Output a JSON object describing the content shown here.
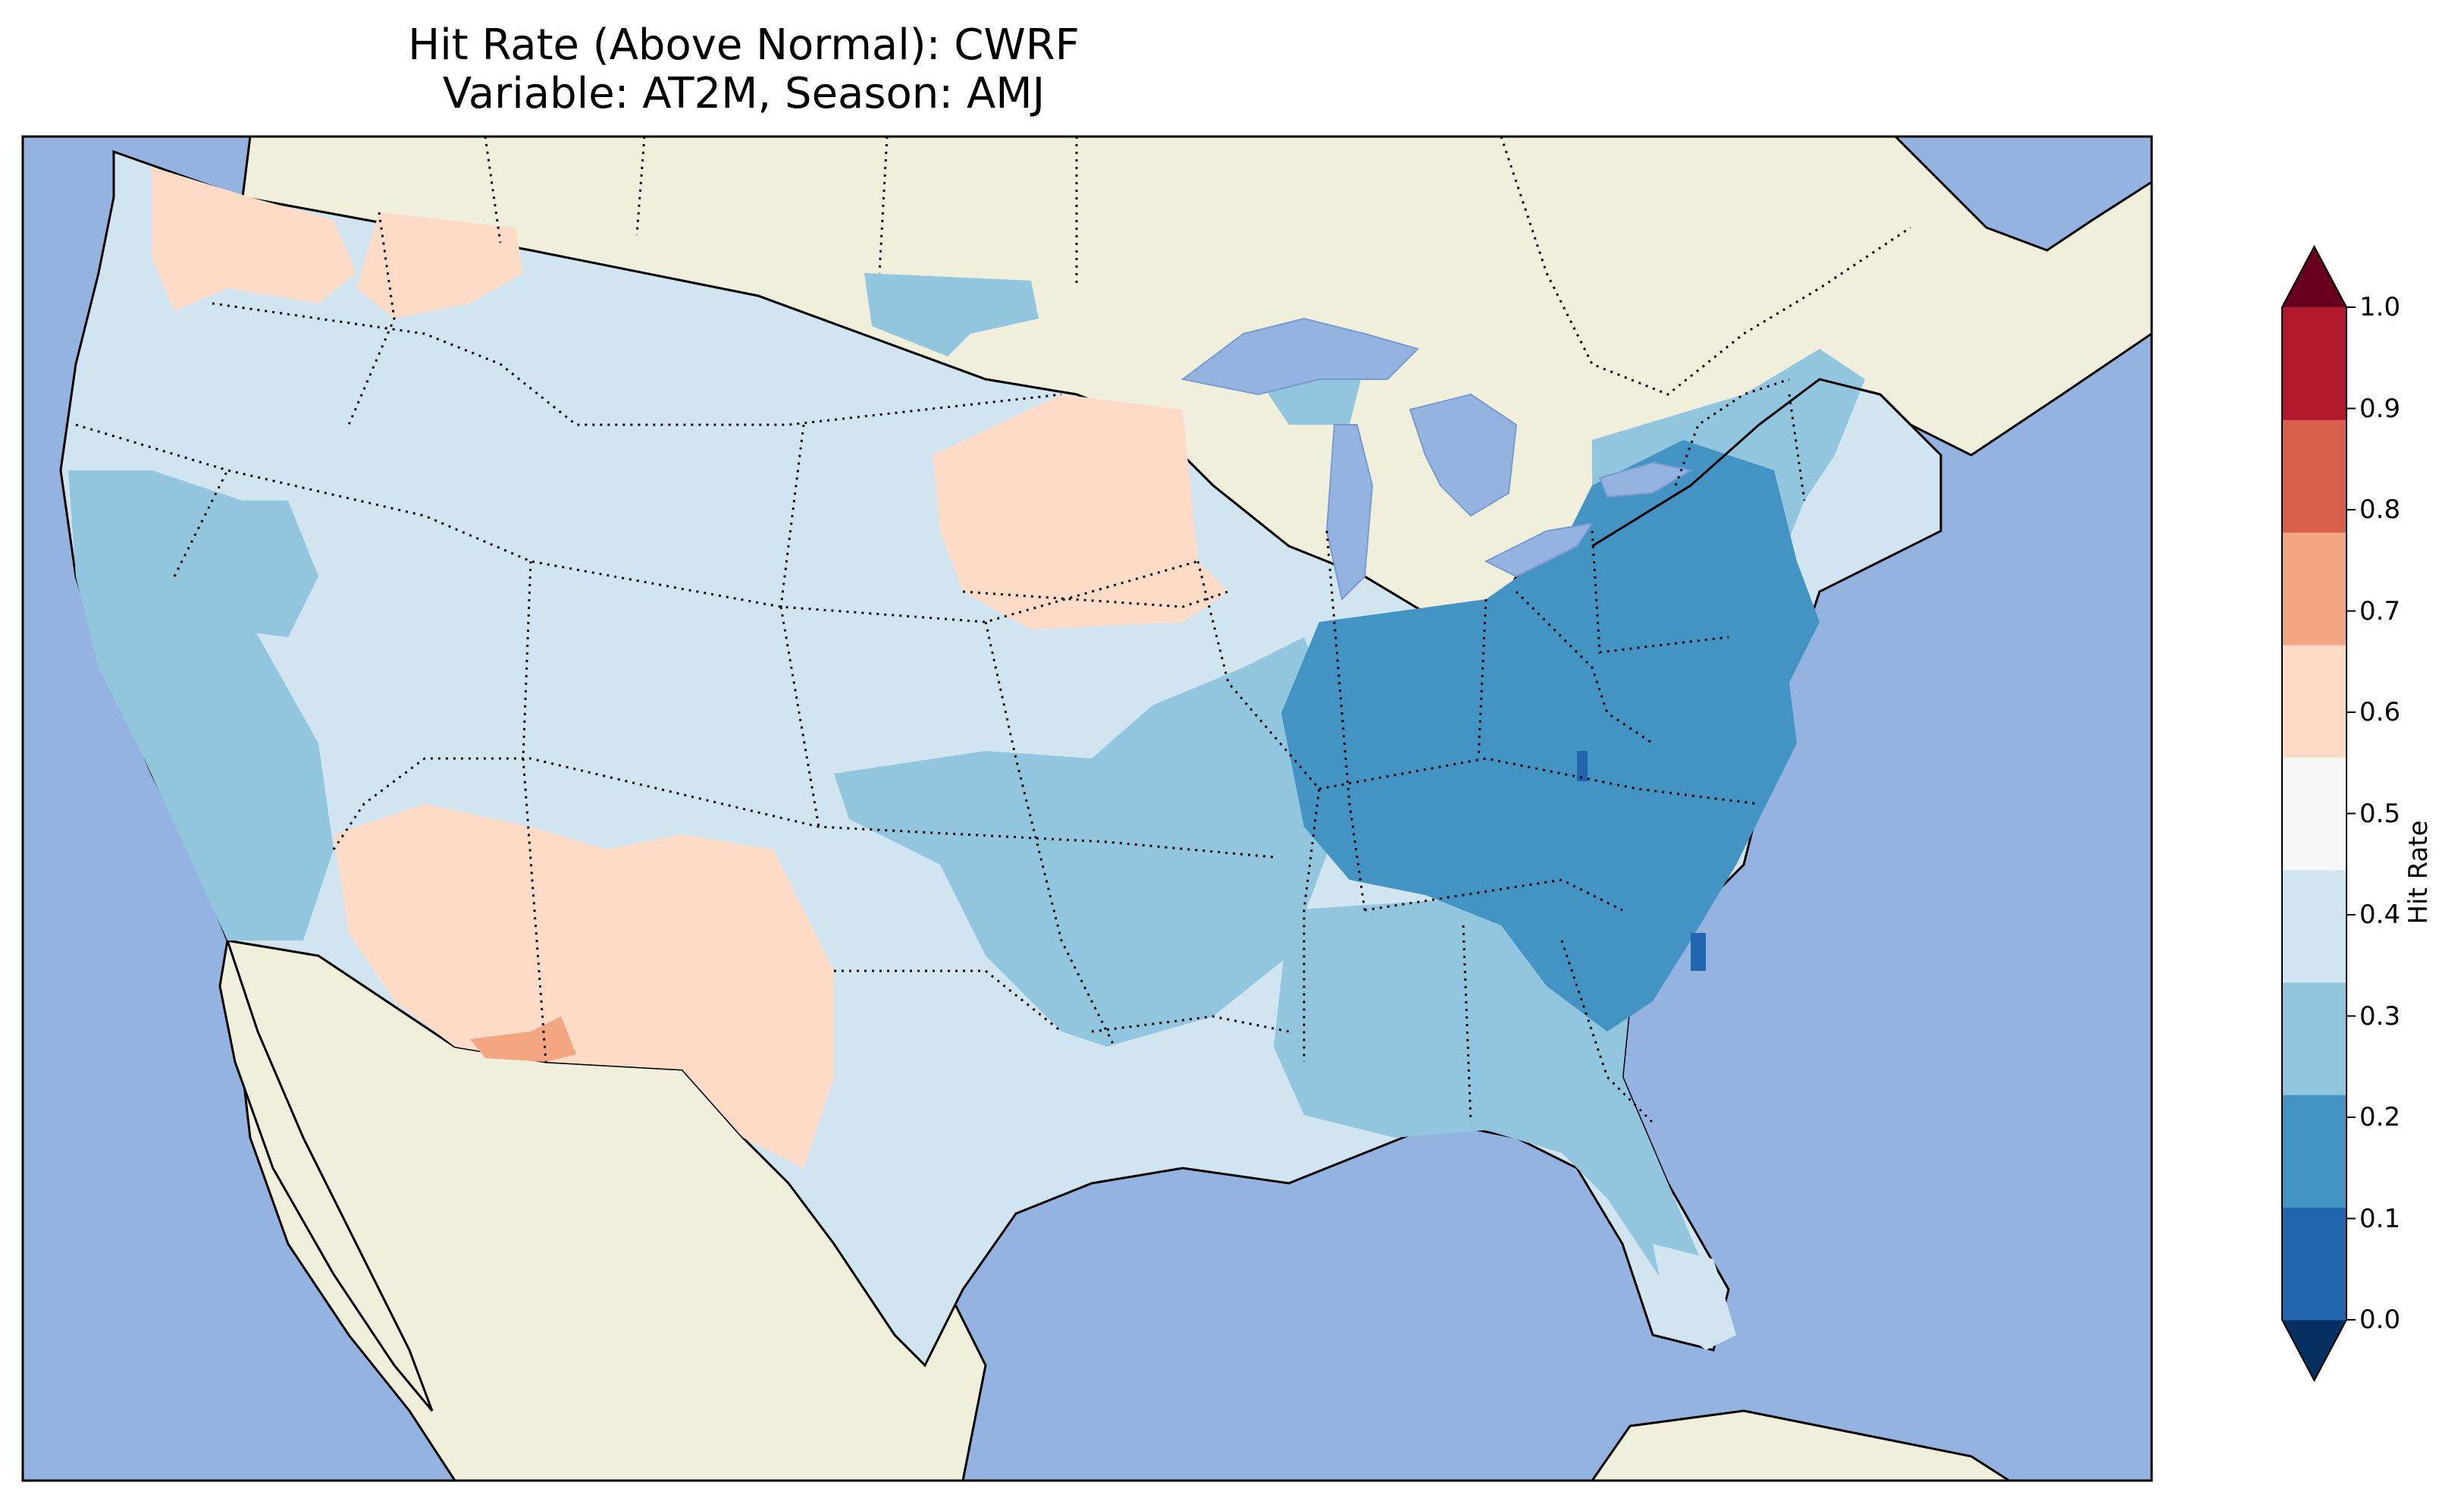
{
  "title": {
    "line1": "Hit Rate (Above Normal): CWRF",
    "line2": "Variable: AT2M, Season: AMJ"
  },
  "colorbar": {
    "label": "Hit Rate",
    "ticks": [
      "0.0",
      "0.1",
      "0.2",
      "0.3",
      "0.4",
      "0.5",
      "0.6",
      "0.7",
      "0.8",
      "0.9",
      "1.0"
    ],
    "colors": [
      "#053061",
      "#2166ac",
      "#4393c3",
      "#92c5de",
      "#d1e5f0",
      "#f7f7f7",
      "#fddbc7",
      "#f4a582",
      "#d6604d",
      "#b2182b",
      "#67001f"
    ]
  },
  "map": {
    "ocean_color": "#95b3e0",
    "land_color": "#efefdc",
    "dominant_classes": {
      "west_interior": "0.4-0.5",
      "california_coast": "0.3-0.4",
      "southwest_az_nm": "0.5-0.6",
      "ohio_valley_mid_atlantic": "0.2-0.3",
      "southeast": "0.3-0.4",
      "northern_plains": "0.5-0.6"
    }
  }
}
